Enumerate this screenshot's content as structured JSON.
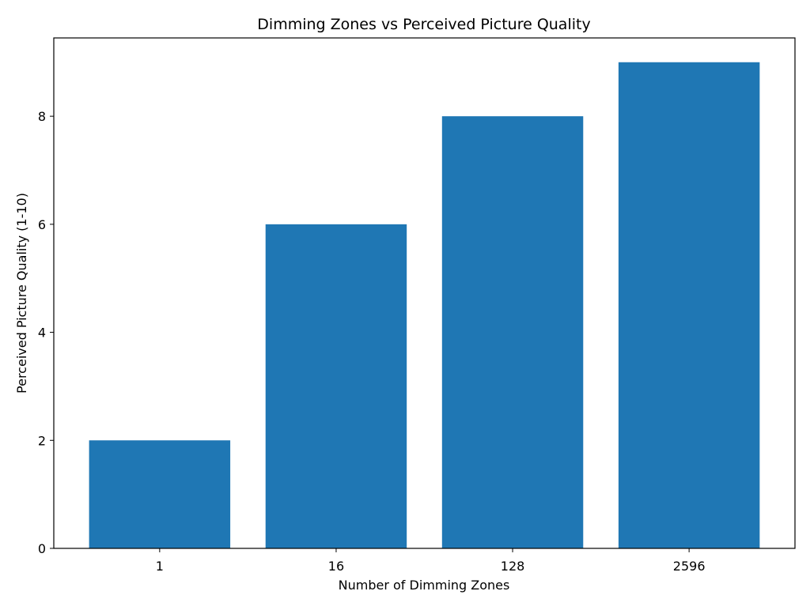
{
  "chart_data": {
    "type": "bar",
    "title": "Dimming Zones vs Perceived Picture Quality",
    "xlabel": "Number of Dimming Zones",
    "ylabel": "Perceived Picture Quality (1-10)",
    "categories": [
      "1",
      "16",
      "128",
      "2596"
    ],
    "values": [
      2,
      6,
      8,
      9
    ],
    "ylim": [
      0,
      9.45
    ],
    "yticks": [
      0,
      2,
      4,
      6,
      8
    ],
    "grid": false,
    "bar_color": "#1f77b4"
  }
}
